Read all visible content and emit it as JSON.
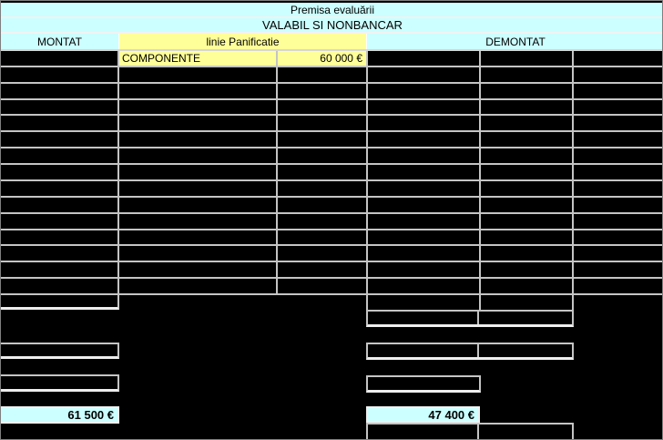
{
  "header": {
    "title": "Premisa evaluării",
    "banner": "VALABIL SI NONBANCAR",
    "left_section": "MONTAT",
    "center_section": "linie Panificatie",
    "right_section": "DEMONTAT"
  },
  "componente": {
    "label": "COMPONENTE",
    "value": "60 000 €"
  },
  "totals": {
    "montat": "61 500 €",
    "demontat": "47 400 €"
  },
  "grid": {
    "rows": 15,
    "columns": 6,
    "cell_value": ""
  },
  "colors": {
    "header_cyan": "#CCFFFF",
    "highlight_yellow": "#FFFF99",
    "cell_black": "#000000",
    "gridline_gray": "#C4C4C4",
    "separator_white": "#F2F2F2"
  }
}
